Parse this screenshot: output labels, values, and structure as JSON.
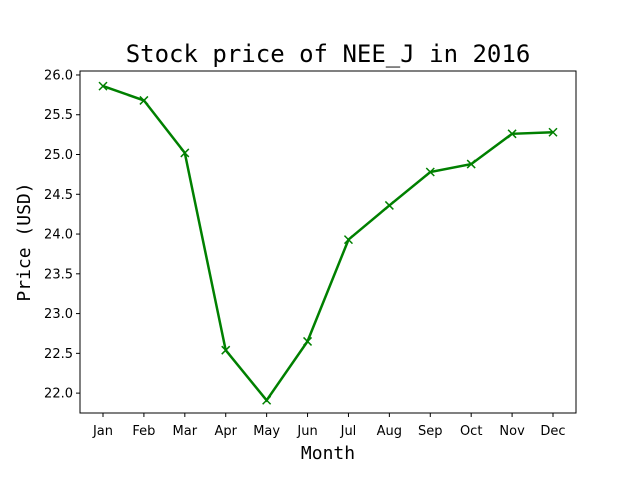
{
  "chart_data": {
    "type": "line",
    "title": "Stock price of NEE_J in 2016",
    "xlabel": "Month",
    "ylabel": "Price (USD)",
    "categories": [
      "Jan",
      "Feb",
      "Mar",
      "Apr",
      "May",
      "Jun",
      "Jul",
      "Aug",
      "Sep",
      "Oct",
      "Nov",
      "Dec"
    ],
    "series": [
      {
        "values": [
          25.86,
          25.68,
          25.02,
          22.54,
          21.91,
          22.65,
          23.93,
          24.36,
          24.78,
          24.88,
          25.26,
          25.28
        ],
        "color": "#008000",
        "marker": "x"
      }
    ],
    "yticks": [
      "22.0",
      "22.5",
      "23.0",
      "23.5",
      "24.0",
      "24.5",
      "25.0",
      "25.5",
      "26.0"
    ],
    "ylim": [
      21.75,
      26.05
    ],
    "grid": false,
    "legend": "none"
  }
}
